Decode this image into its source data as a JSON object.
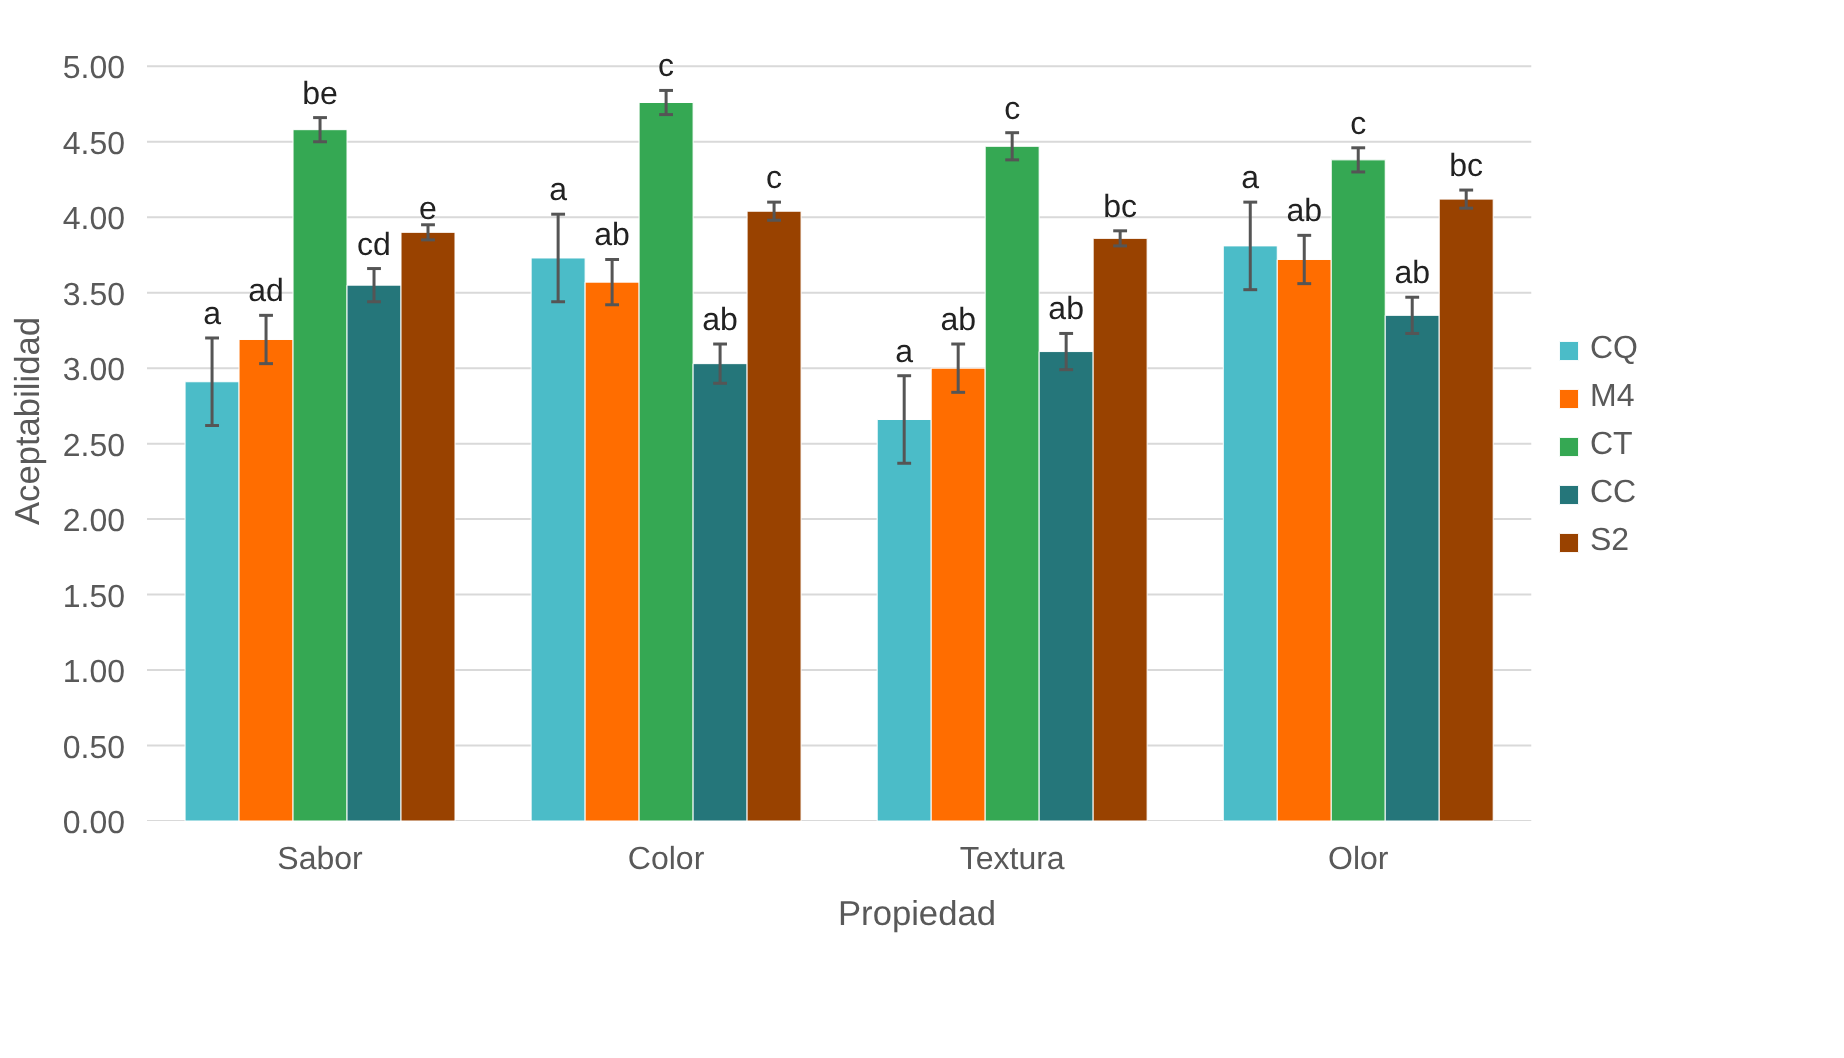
{
  "chart_data": {
    "type": "bar",
    "xlabel": "Propiedad",
    "ylabel": "Aceptabilidad",
    "categories": [
      "Sabor",
      "Color",
      "Textura",
      "Olor"
    ],
    "ylim": [
      0,
      5
    ],
    "yticks": [
      {
        "value": 0,
        "label": "0.00"
      },
      {
        "value": 0.5,
        "label": "0.50"
      },
      {
        "value": 1,
        "label": "1.00"
      },
      {
        "value": 1.5,
        "label": "1.50"
      },
      {
        "value": 2,
        "label": "2.00"
      },
      {
        "value": 2.5,
        "label": "2.50"
      },
      {
        "value": 3,
        "label": "3.00"
      },
      {
        "value": 3.5,
        "label": "3.50"
      },
      {
        "value": 4,
        "label": "4.00"
      },
      {
        "value": 4.5,
        "label": "4.50"
      },
      {
        "value": 5,
        "label": "5.00"
      }
    ],
    "grid": "y",
    "legend": "right",
    "series": [
      {
        "name": "CQ",
        "color": "#4bbcc8",
        "values": [
          2.91,
          3.73,
          2.66,
          3.81
        ],
        "errors": [
          0.29,
          0.29,
          0.29,
          0.29
        ],
        "value_labels": [
          "a",
          "a",
          "a",
          "a"
        ]
      },
      {
        "name": "M4",
        "color": "#ff6d00",
        "values": [
          3.19,
          3.57,
          3.0,
          3.72
        ],
        "errors": [
          0.16,
          0.15,
          0.16,
          0.16
        ],
        "value_labels": [
          "ad",
          "ab",
          "ab",
          "ab"
        ]
      },
      {
        "name": "CT",
        "color": "#35a853",
        "values": [
          4.58,
          4.76,
          4.47,
          4.38
        ],
        "errors": [
          0.08,
          0.08,
          0.09,
          0.08
        ],
        "value_labels": [
          "be",
          "c",
          "c",
          "c"
        ]
      },
      {
        "name": "CC",
        "color": "#25767a",
        "values": [
          3.55,
          3.03,
          3.11,
          3.35
        ],
        "errors": [
          0.11,
          0.13,
          0.12,
          0.12
        ],
        "value_labels": [
          "cd",
          "ab",
          "ab",
          "ab"
        ]
      },
      {
        "name": "S2",
        "color": "#994200",
        "values": [
          3.9,
          4.04,
          3.86,
          4.12
        ],
        "errors": [
          0.05,
          0.06,
          0.05,
          0.06
        ],
        "value_labels": [
          "e",
          "c",
          "bc",
          "bc"
        ]
      }
    ]
  }
}
